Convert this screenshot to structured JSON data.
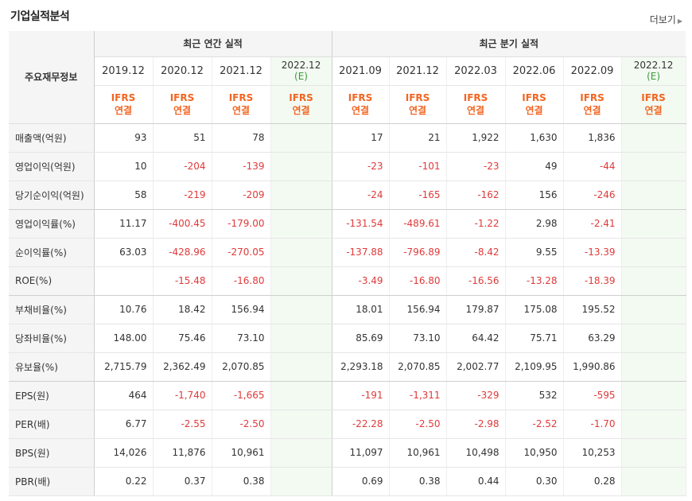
{
  "section_title": "기업실적분석",
  "more_label": "더보기",
  "more_arrow": "▶",
  "header": {
    "row_label": "주요재무정보",
    "annual_group": "최근 연간 실적",
    "quarterly_group": "최근 분기 실적",
    "basis_line1": "IFRS",
    "basis_line2": "연결",
    "periods": [
      {
        "label": "2019.12",
        "est": ""
      },
      {
        "label": "2020.12",
        "est": ""
      },
      {
        "label": "2021.12",
        "est": ""
      },
      {
        "label": "2022.12",
        "est": "(E)"
      },
      {
        "label": "2021.09",
        "est": ""
      },
      {
        "label": "2021.12",
        "est": ""
      },
      {
        "label": "2022.03",
        "est": ""
      },
      {
        "label": "2022.06",
        "est": ""
      },
      {
        "label": "2022.09",
        "est": ""
      },
      {
        "label": "2022.12",
        "est": "(E)"
      }
    ]
  },
  "rows": [
    {
      "label": "매출액(억원)",
      "values": [
        "93",
        "51",
        "78",
        "",
        "17",
        "21",
        "1,922",
        "1,630",
        "1,836",
        ""
      ]
    },
    {
      "label": "영업이익(억원)",
      "values": [
        "10",
        "-204",
        "-139",
        "",
        "-23",
        "-101",
        "-23",
        "49",
        "-44",
        ""
      ]
    },
    {
      "label": "당기순이익(억원)",
      "values": [
        "58",
        "-219",
        "-209",
        "",
        "-24",
        "-165",
        "-162",
        "156",
        "-246",
        ""
      ]
    },
    {
      "label": "영업이익률(%)",
      "values": [
        "11.17",
        "-400.45",
        "-179.00",
        "",
        "-131.54",
        "-489.61",
        "-1.22",
        "2.98",
        "-2.41",
        ""
      ]
    },
    {
      "label": "순이익률(%)",
      "values": [
        "63.03",
        "-428.96",
        "-270.05",
        "",
        "-137.88",
        "-796.89",
        "-8.42",
        "9.55",
        "-13.39",
        ""
      ]
    },
    {
      "label": "ROE(%)",
      "values": [
        "",
        "-15.48",
        "-16.80",
        "",
        "-3.49",
        "-16.80",
        "-16.56",
        "-13.28",
        "-18.39",
        ""
      ]
    },
    {
      "label": "부채비율(%)",
      "values": [
        "10.76",
        "18.42",
        "156.94",
        "",
        "18.01",
        "156.94",
        "179.87",
        "175.08",
        "195.52",
        ""
      ]
    },
    {
      "label": "당좌비율(%)",
      "values": [
        "148.00",
        "75.46",
        "73.10",
        "",
        "85.69",
        "73.10",
        "64.42",
        "75.71",
        "63.29",
        ""
      ]
    },
    {
      "label": "유보율(%)",
      "values": [
        "2,715.79",
        "2,362.49",
        "2,070.85",
        "",
        "2,293.18",
        "2,070.85",
        "2,002.77",
        "2,109.95",
        "1,990.86",
        ""
      ]
    },
    {
      "label": "EPS(원)",
      "values": [
        "464",
        "-1,740",
        "-1,665",
        "",
        "-191",
        "-1,311",
        "-329",
        "532",
        "-595",
        ""
      ]
    },
    {
      "label": "PER(배)",
      "values": [
        "6.77",
        "-2.55",
        "-2.50",
        "",
        "-22.28",
        "-2.50",
        "-2.98",
        "-2.52",
        "-1.70",
        ""
      ]
    },
    {
      "label": "BPS(원)",
      "values": [
        "14,026",
        "11,876",
        "10,961",
        "",
        "11,097",
        "10,961",
        "10,498",
        "10,950",
        "10,253",
        ""
      ]
    },
    {
      "label": "PBR(배)",
      "values": [
        "0.22",
        "0.37",
        "0.38",
        "",
        "0.69",
        "0.38",
        "0.44",
        "0.30",
        "0.28",
        ""
      ]
    }
  ],
  "colors": {
    "negative": "#e03a3a",
    "basis": "#f26522",
    "estimate_bg": "#f3faf2"
  }
}
